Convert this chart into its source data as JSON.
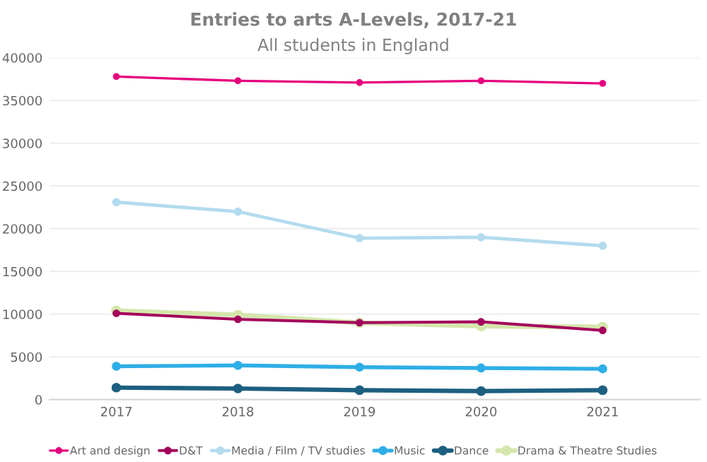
{
  "chart_data": {
    "type": "line",
    "title": "Entries to arts A-Levels, 2017-21",
    "subtitle": "All students in England",
    "categories": [
      "2017",
      "2018",
      "2019",
      "2020",
      "2021"
    ],
    "series": [
      {
        "name": "Art and design",
        "color": "#e5007d",
        "values": [
          37800,
          37300,
          37100,
          37300,
          37000
        ]
      },
      {
        "name": "D&T",
        "color": "#a3005c",
        "values": [
          10100,
          9400,
          9000,
          9100,
          8100
        ]
      },
      {
        "name": "Media / Film / TV studies",
        "color": "#b3dbee",
        "values": [
          23100,
          22000,
          18900,
          19000,
          18000
        ]
      },
      {
        "name": "Music",
        "color": "#2eaee6",
        "values": [
          3900,
          4000,
          3800,
          3700,
          3600
        ]
      },
      {
        "name": "Dance",
        "color": "#1d5f80",
        "values": [
          1400,
          1300,
          1100,
          1000,
          1100
        ]
      },
      {
        "name": "Drama & Theatre Studies",
        "color": "#d5e6ac",
        "values": [
          10400,
          9900,
          9000,
          8600,
          8500
        ]
      }
    ],
    "ylim": [
      0,
      40000
    ],
    "yticks": [
      0,
      5000,
      10000,
      15000,
      20000,
      25000,
      30000,
      35000,
      40000
    ],
    "grid": "y",
    "legend": "bottom",
    "marker": "circle",
    "line_style": "solid"
  }
}
